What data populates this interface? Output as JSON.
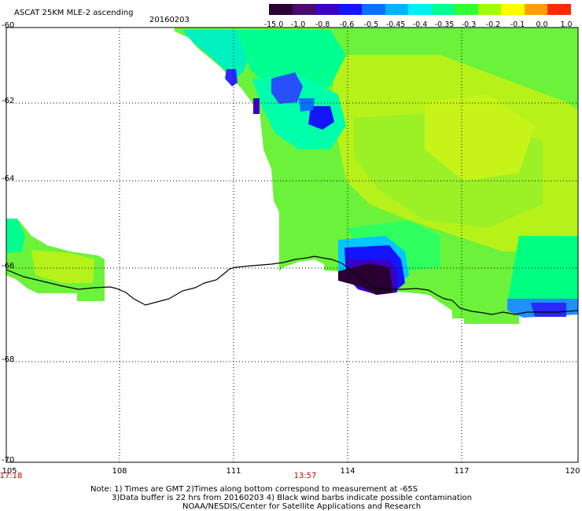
{
  "header": {
    "title": "ASCAT 25KM MLE-2 ascending",
    "date": "20160203"
  },
  "colorbar": {
    "labels": [
      "-15.0",
      "-1.0",
      "-0.8",
      "-0.6",
      "-0.5",
      "-0.45",
      "-0.4",
      "-0.35",
      "-0.3",
      "-0.2",
      "-0.1",
      "0.0",
      "1.0"
    ],
    "colors": [
      "#2a0033",
      "#4a0a6e",
      "#3a00c8",
      "#1414ff",
      "#0a70ff",
      "#00b4ff",
      "#00f0f0",
      "#00ff90",
      "#30ff30",
      "#a0ff00",
      "#ffff00",
      "#ffa000",
      "#ff2a00"
    ]
  },
  "axes": {
    "lat_labels": [
      "-60",
      "-62",
      "-64",
      "-66",
      "-68",
      "-70"
    ],
    "lon_labels": [
      "105",
      "108",
      "111",
      "114",
      "117",
      "120"
    ],
    "time_labels": [
      "17:18",
      "13:57"
    ]
  },
  "notes": [
    "Note: 1) Times are GMT 2)Times along bottom correspond to measurement at -65S",
    "3)Data buffer is 22 hrs from 20160203 4) Black wind barbs indicate possible contamination",
    "NOAA/NESDIS/Center for Satellite Applications and Research"
  ],
  "colors": {
    "background": "#ffffff",
    "grid": "#000000",
    "coastline": "#000000",
    "time_label": "#cc0000"
  }
}
